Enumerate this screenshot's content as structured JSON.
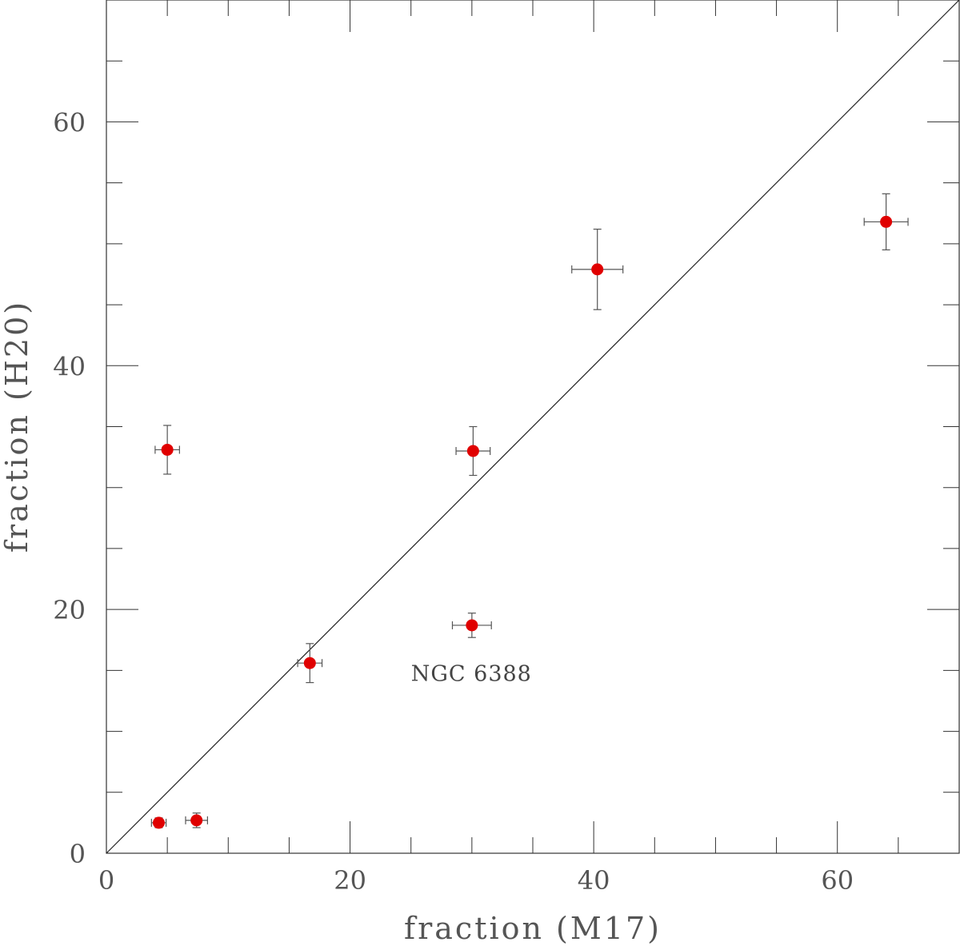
{
  "chart_data": {
    "type": "scatter",
    "xlabel": "fraction (M17)",
    "ylabel": "fraction (H20)",
    "xlim": [
      0,
      70
    ],
    "ylim": [
      0,
      70
    ],
    "x_ticks": [
      0,
      20,
      40,
      60
    ],
    "y_ticks": [
      0,
      20,
      40,
      60
    ],
    "x_tick_labels": [
      "0",
      "20",
      "40",
      "60"
    ],
    "y_tick_labels": [
      "0",
      "20",
      "40",
      "60"
    ],
    "minor_tick_step": 5,
    "grid": false,
    "reference_line": {
      "type": "identity",
      "from": [
        0,
        0
      ],
      "to": [
        70,
        70
      ]
    },
    "marker_color": "#e00000",
    "errorbar_color": "#555555",
    "series": [
      {
        "points": [
          {
            "x": 4.3,
            "y": 2.5,
            "xerr": 0.6,
            "yerr": 0.4
          },
          {
            "x": 7.4,
            "y": 2.7,
            "xerr": 0.9,
            "yerr": 0.6
          },
          {
            "x": 5.0,
            "y": 33.1,
            "xerr": 1.0,
            "yerr": 2.0
          },
          {
            "x": 16.7,
            "y": 15.6,
            "xerr": 1.0,
            "yerr": 1.6
          },
          {
            "x": 30.1,
            "y": 33.0,
            "xerr": 1.4,
            "yerr": 2.0
          },
          {
            "x": 30.0,
            "y": 18.7,
            "xerr": 1.6,
            "yerr": 1.0
          },
          {
            "x": 40.3,
            "y": 47.9,
            "xerr": 2.1,
            "yerr": 3.3
          },
          {
            "x": 64.0,
            "y": 51.8,
            "xerr": 1.8,
            "yerr": 2.3
          }
        ]
      }
    ],
    "annotations": [
      {
        "text": "NGC 6388",
        "x": 25.0,
        "y": 14.8
      }
    ]
  }
}
